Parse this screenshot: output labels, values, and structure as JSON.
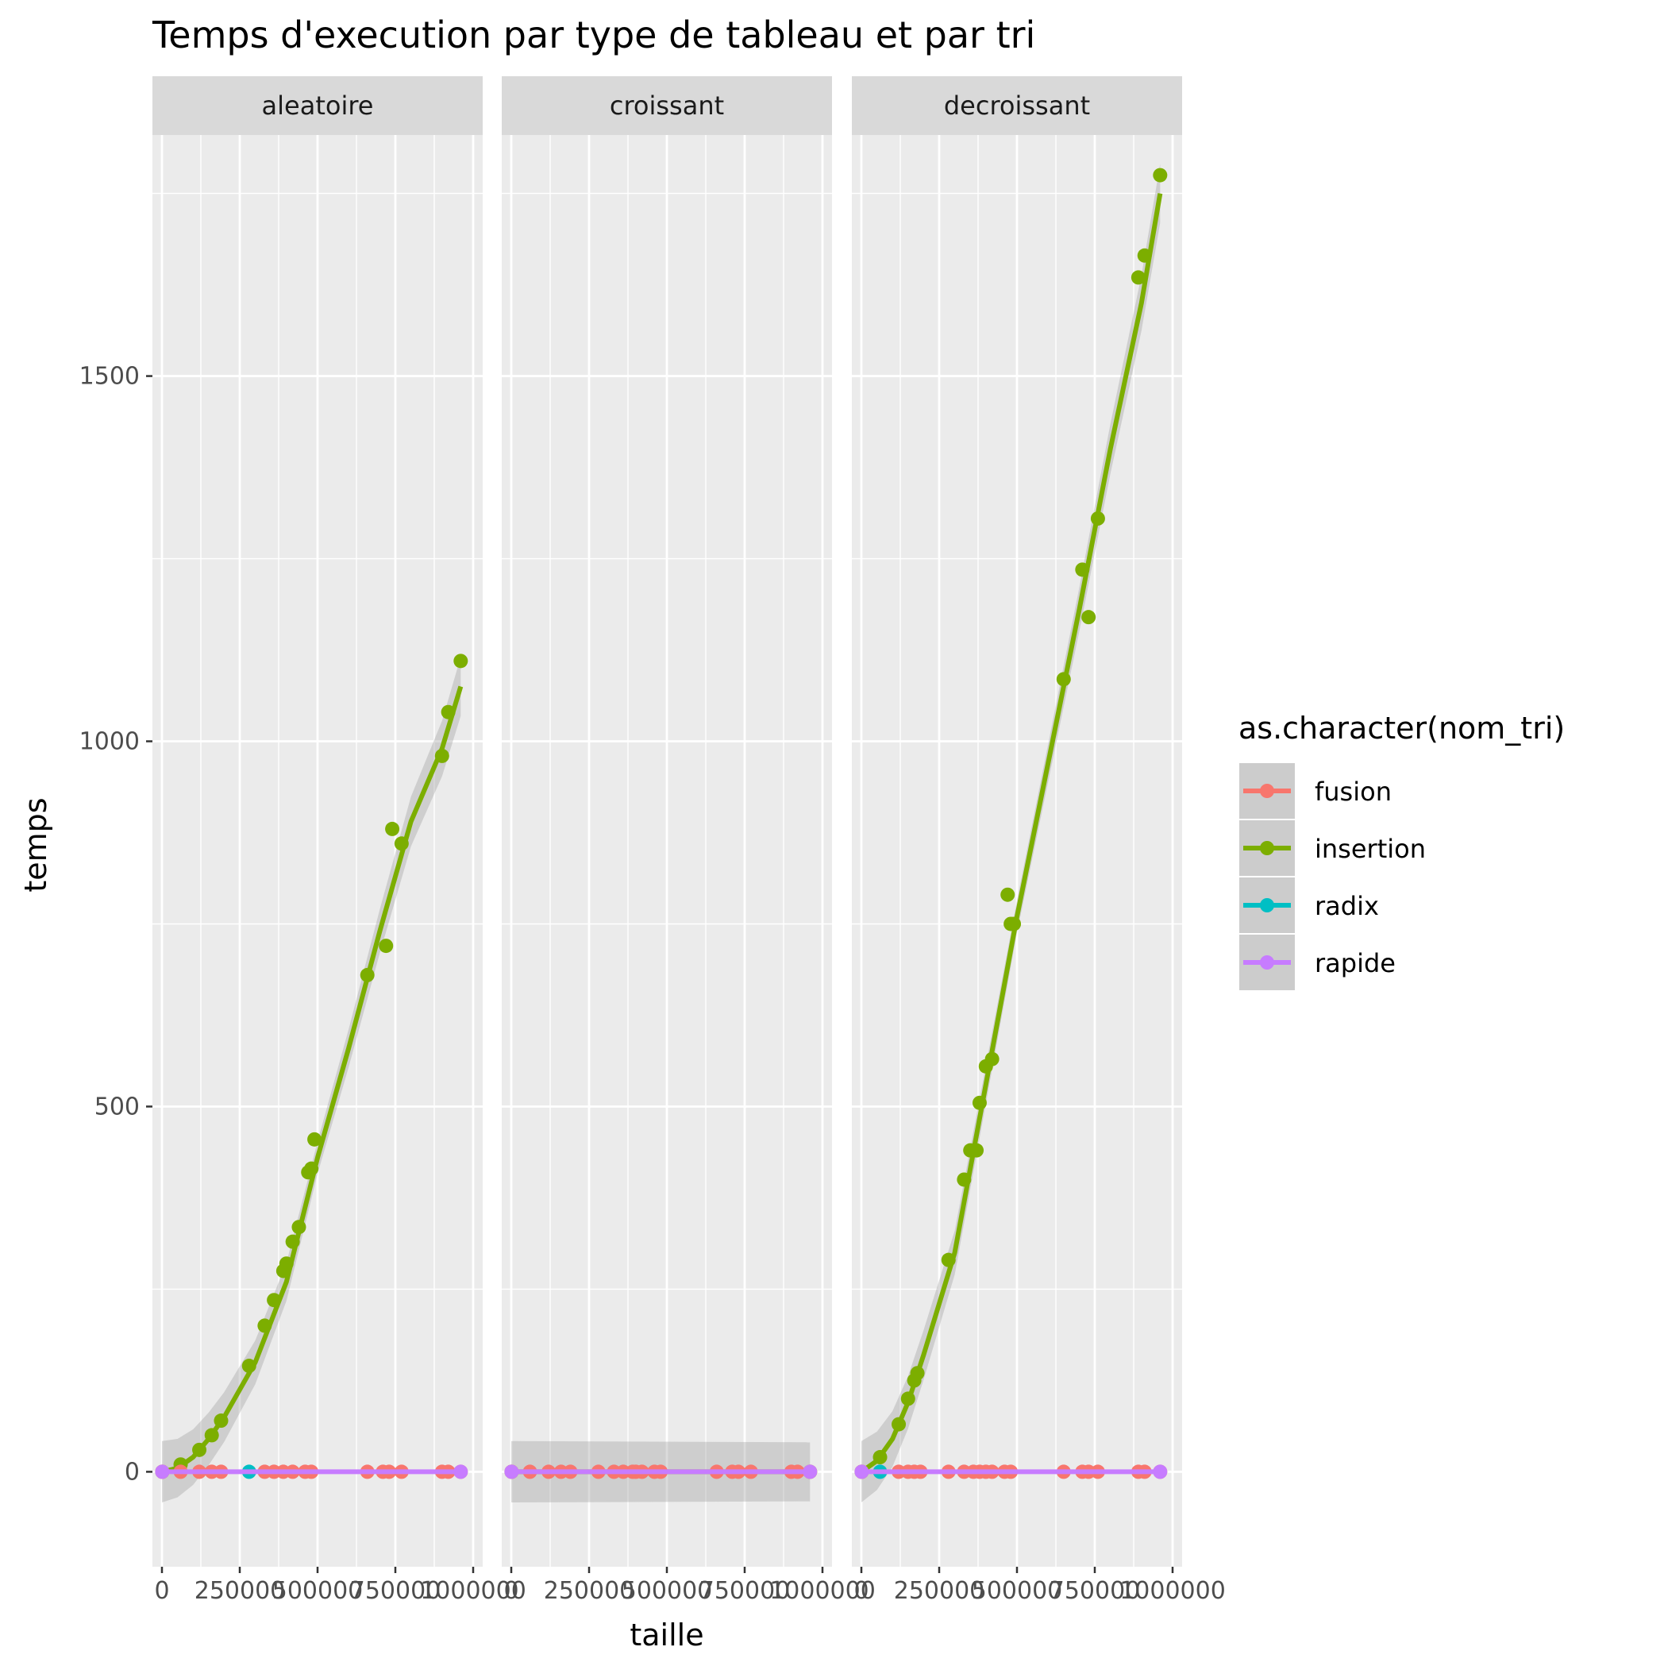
{
  "chart_data": {
    "type": "scatter",
    "title": "Temps d'execution par type de tableau et par tri",
    "xlabel": "taille",
    "ylabel": "temps",
    "xlim": [
      0,
      1000000
    ],
    "ylim": [
      -130,
      1830
    ],
    "x_ticks": [
      0,
      250000,
      500000,
      750000,
      1000000
    ],
    "x_tick_labels": [
      "0",
      "250000",
      "500000",
      "750000",
      "1000000"
    ],
    "y_ticks": [
      0,
      500,
      1000,
      1500
    ],
    "y_tick_labels": [
      "0",
      "500",
      "1000",
      "1500"
    ],
    "smoothing": "loess with confidence band",
    "grid": true,
    "legend": {
      "title": "as.character(nom_tri)",
      "placement": "right",
      "items": [
        {
          "label": "fusion",
          "color": "#F8766D"
        },
        {
          "label": "insertion",
          "color": "#7CAE00"
        },
        {
          "label": "radix",
          "color": "#00BFC4"
        },
        {
          "label": "rapide",
          "color": "#C77CFF"
        }
      ]
    },
    "colors": {
      "fusion": "#F8766D",
      "insertion": "#7CAE00",
      "radix": "#00BFC4",
      "rapide": "#C77CFF",
      "panel_bg": "#EBEBEB",
      "strip_bg": "#D9D9D9",
      "band": "#999999"
    },
    "x_sizes": [
      1000,
      60000,
      120000,
      160000,
      190000,
      280000,
      330000,
      360000,
      390000,
      400000,
      420000,
      460000,
      480000,
      660000,
      710000,
      730000,
      770000,
      900000,
      920000,
      960000
    ],
    "panels": [
      {
        "name": "aleatoire",
        "series": [
          {
            "name": "insertion",
            "x": [
              1000,
              60000,
              120000,
              160000,
              190000,
              280000,
              330000,
              360000,
              390000,
              400000,
              420000,
              440000,
              470000,
              480000,
              490000,
              660000,
              720000,
              740000,
              770000,
              900000,
              920000,
              960000
            ],
            "y": [
              0,
              10,
              30,
              50,
              70,
              145,
              200,
              235,
              275,
              285,
              315,
              335,
              410,
              415,
              455,
              680,
              720,
              880,
              860,
              980,
              1040,
              1110
            ],
            "smooth_x": [
              0,
              50000,
              100000,
              150000,
              200000,
              300000,
              400000,
              500000,
              600000,
              700000,
              800000,
              900000,
              960000
            ],
            "smooth_y": [
              0,
              5,
              20,
              45,
              75,
              150,
              260,
              430,
              580,
              740,
              890,
              990,
              1075
            ]
          },
          {
            "name": "fusion",
            "x": [
              1000,
              60000,
              120000,
              160000,
              190000,
              330000,
              360000,
              390000,
              420000,
              460000,
              480000,
              660000,
              710000,
              730000,
              770000,
              900000,
              920000,
              960000
            ],
            "y": [
              0,
              0,
              0,
              0,
              0,
              0,
              0,
              0,
              0,
              0,
              0,
              0,
              0,
              0,
              0,
              0,
              0,
              0
            ]
          },
          {
            "name": "radix",
            "x": [
              280000
            ],
            "y": [
              0
            ]
          },
          {
            "name": "rapide",
            "x": [
              1000,
              960000
            ],
            "y": [
              0,
              0
            ]
          }
        ]
      },
      {
        "name": "croissant",
        "series": [
          {
            "name": "insertion",
            "x": [
              1000,
              960000
            ],
            "y": [
              0,
              0
            ],
            "smooth_x": [
              0,
              960000
            ],
            "smooth_y": [
              0,
              0
            ]
          },
          {
            "name": "fusion",
            "x": [
              1000,
              60000,
              120000,
              160000,
              190000,
              280000,
              330000,
              360000,
              390000,
              400000,
              420000,
              460000,
              480000,
              660000,
              710000,
              730000,
              770000,
              900000,
              920000,
              960000
            ],
            "y": [
              0,
              0,
              0,
              0,
              0,
              0,
              0,
              0,
              0,
              0,
              0,
              0,
              0,
              0,
              0,
              0,
              0,
              0,
              0,
              0
            ]
          },
          {
            "name": "radix",
            "x": [],
            "y": []
          },
          {
            "name": "rapide",
            "x": [
              1000,
              960000
            ],
            "y": [
              0,
              0
            ]
          }
        ]
      },
      {
        "name": "decroissant",
        "series": [
          {
            "name": "insertion",
            "x": [
              1000,
              60000,
              120000,
              150000,
              170000,
              180000,
              280000,
              330000,
              350000,
              370000,
              380000,
              400000,
              420000,
              470000,
              480000,
              490000,
              650000,
              710000,
              730000,
              760000,
              890000,
              910000,
              960000
            ],
            "y": [
              0,
              20,
              65,
              100,
              125,
              135,
              290,
              400,
              440,
              440,
              505,
              555,
              565,
              790,
              750,
              750,
              1085,
              1235,
              1170,
              1305,
              1635,
              1665,
              1775
            ],
            "smooth_x": [
              0,
              50000,
              100000,
              150000,
              200000,
              300000,
              400000,
              500000,
              600000,
              700000,
              800000,
              900000,
              960000
            ],
            "smooth_y": [
              0,
              15,
              45,
              95,
              160,
              300,
              530,
              760,
              970,
              1180,
              1400,
              1600,
              1750
            ]
          },
          {
            "name": "fusion",
            "x": [
              1000,
              120000,
              150000,
              170000,
              190000,
              280000,
              330000,
              360000,
              380000,
              400000,
              420000,
              460000,
              480000,
              650000,
              710000,
              730000,
              760000,
              890000,
              910000,
              960000
            ],
            "y": [
              0,
              0,
              0,
              0,
              0,
              0,
              0,
              0,
              0,
              0,
              0,
              0,
              0,
              0,
              0,
              0,
              0,
              0,
              0,
              0
            ]
          },
          {
            "name": "radix",
            "x": [
              60000
            ],
            "y": [
              0
            ]
          },
          {
            "name": "rapide",
            "x": [
              1000,
              960000
            ],
            "y": [
              0,
              0
            ]
          }
        ]
      }
    ]
  }
}
